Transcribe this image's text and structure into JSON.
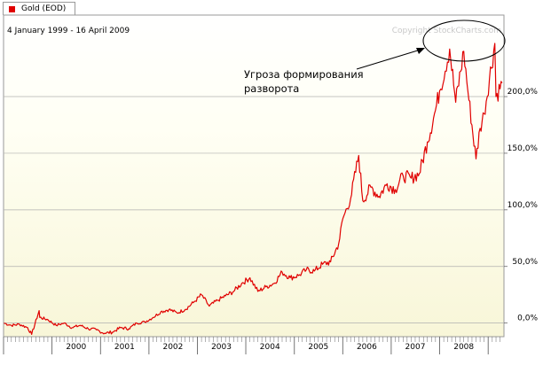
{
  "legend": {
    "label": "Gold (EOD)",
    "color": "#e00000"
  },
  "date_range": "4 January 1999 - 16 April 2009",
  "watermark": "Copyright StockCharts.com",
  "annotation": {
    "line1": "Угроза формирования",
    "line2": "разворота"
  },
  "chart_data": {
    "type": "line",
    "series": [
      {
        "color": "#e00000",
        "x": [
          "1999-01-04",
          "1999-03",
          "1999-05",
          "1999-07",
          "1999-08",
          "1999-09-26",
          "1999-10",
          "1999-12",
          "2000-02",
          "2000-04",
          "2000-06",
          "2000-08",
          "2000-10",
          "2000-12",
          "2001-02",
          "2001-04",
          "2001-06",
          "2001-08",
          "2001-10",
          "2001-12",
          "2002-02",
          "2002-04",
          "2002-06",
          "2002-08",
          "2002-10",
          "2002-12",
          "2003-02",
          "2003-04",
          "2003-06",
          "2003-08",
          "2003-10",
          "2003-12",
          "2004-02",
          "2004-04",
          "2004-06",
          "2004-08",
          "2004-10",
          "2004-12",
          "2005-02",
          "2005-04",
          "2005-06",
          "2005-08",
          "2005-10",
          "2005-12",
          "2006-01",
          "2006-03",
          "2006-05",
          "2006-06",
          "2006-08",
          "2006-10",
          "2006-12",
          "2007-02",
          "2007-04",
          "2007-06",
          "2007-08",
          "2007-10",
          "2007-12",
          "2008-01",
          "2008-03-17",
          "2008-05",
          "2008-07",
          "2008-08",
          "2008-10",
          "2008-11",
          "2008-12",
          "2009-02-20",
          "2009-03",
          "2009-04-16"
        ],
        "y": [
          0,
          -2,
          -1,
          -4,
          -10,
          11,
          5,
          3,
          -2,
          0,
          -4,
          -2,
          -5,
          -6,
          -9,
          -8,
          -4,
          -5,
          0,
          1,
          5,
          10,
          12,
          9,
          12,
          18,
          25,
          15,
          20,
          24,
          28,
          35,
          40,
          28,
          32,
          35,
          45,
          40,
          42,
          47,
          46,
          52,
          54,
          70,
          92,
          110,
          148,
          108,
          120,
          112,
          123,
          118,
          130,
          128,
          132,
          160,
          188,
          205,
          242,
          195,
          240,
          205,
          145,
          172,
          185,
          247,
          200,
          212
        ]
      }
    ],
    "xlabel": "",
    "ylabel": "",
    "x_tick_labels": [
      "2000",
      "2001",
      "2002",
      "2003",
      "2004",
      "2005",
      "2006",
      "2007",
      "2008"
    ],
    "y_tick_labels": [
      "0,0%",
      "50,0%",
      "100,0%",
      "150,0%",
      "200,0%"
    ],
    "y_ticks": [
      0,
      50,
      100,
      150,
      200
    ],
    "ylim": [
      -12,
      272
    ],
    "xlim": [
      "1999-01-01",
      "2009-04-30"
    ],
    "grid": true,
    "legend_position": "top-left"
  }
}
